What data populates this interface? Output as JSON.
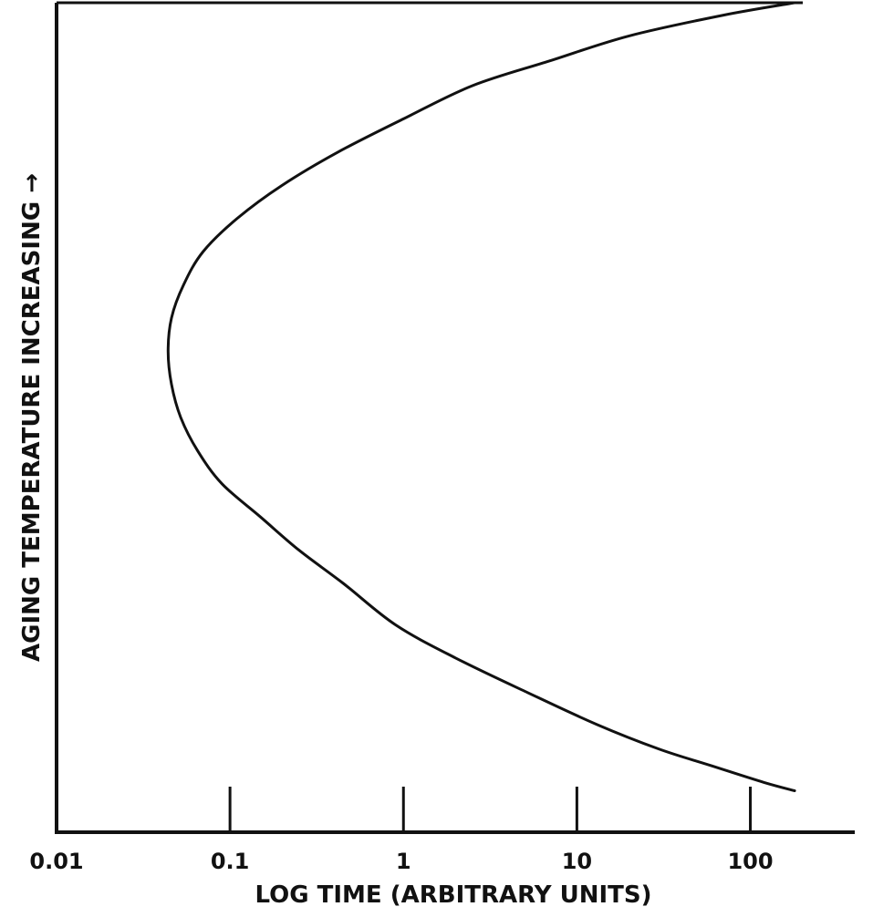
{
  "chart_data": {
    "type": "line",
    "xlabel": "LOG TIME (ARBITRARY UNITS)",
    "ylabel": "AGING TEMPERATURE INCREASING →",
    "x_scale": "log",
    "xlim": [
      0.01,
      400
    ],
    "ylim": [
      0,
      1
    ],
    "x_ticks": [
      0.1,
      1,
      10,
      100
    ],
    "x_tick_labels": [
      "0.01",
      "0.1",
      "1",
      "10",
      "100"
    ],
    "x_tick_label_values": [
      0.01,
      0.1,
      1,
      10,
      100
    ],
    "y_ticks": [],
    "grid": false,
    "legend": "none",
    "series": [
      {
        "color": "#111111",
        "points": [
          [
            180,
            0.05
          ],
          [
            120,
            0.06
          ],
          [
            60,
            0.08
          ],
          [
            30,
            0.1
          ],
          [
            13,
            0.13
          ],
          [
            5,
            0.17
          ],
          [
            2,
            0.21
          ],
          [
            0.9,
            0.25
          ],
          [
            0.45,
            0.3
          ],
          [
            0.25,
            0.34
          ],
          [
            0.15,
            0.38
          ],
          [
            0.09,
            0.42
          ],
          [
            0.065,
            0.46
          ],
          [
            0.052,
            0.5
          ],
          [
            0.046,
            0.54
          ],
          [
            0.044,
            0.58
          ],
          [
            0.046,
            0.62
          ],
          [
            0.054,
            0.66
          ],
          [
            0.07,
            0.7
          ],
          [
            0.11,
            0.74
          ],
          [
            0.2,
            0.78
          ],
          [
            0.42,
            0.82
          ],
          [
            1.0,
            0.86
          ],
          [
            2.5,
            0.9
          ],
          [
            7,
            0.93
          ],
          [
            20,
            0.96
          ],
          [
            70,
            0.985
          ],
          [
            180,
            1.0
          ]
        ]
      }
    ]
  }
}
